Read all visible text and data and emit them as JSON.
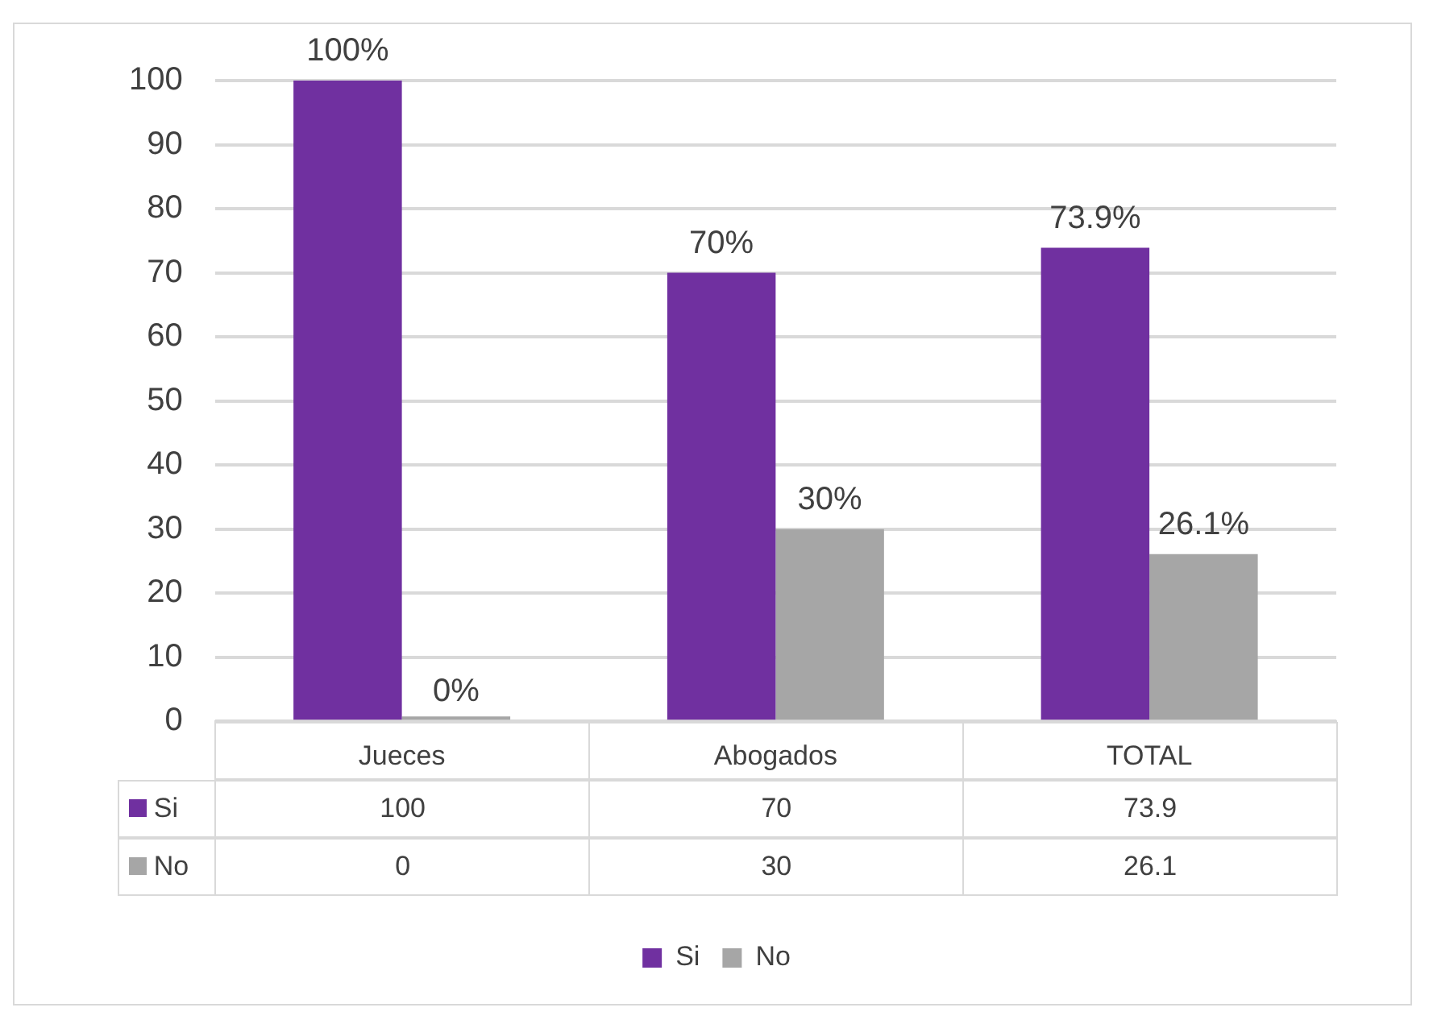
{
  "chart_data": {
    "type": "bar",
    "categories": [
      "Jueces",
      "Abogados",
      "TOTAL"
    ],
    "series": [
      {
        "name": "Si",
        "color": "#7030a0",
        "values": [
          100,
          70,
          73.9
        ]
      },
      {
        "name": "No",
        "color": "#a6a6a6",
        "values": [
          0,
          30,
          26.1
        ]
      }
    ],
    "annotations": [
      {
        "text": "100%",
        "x": "Jueces",
        "y": 100
      },
      {
        "text": "70%",
        "x": "Abogados",
        "y": 70
      },
      {
        "text": "73.9%",
        "x": "TOTAL",
        "y": 73.9
      },
      {
        "text": "0%",
        "x": "Jueces",
        "y": 0
      },
      {
        "text": "30%",
        "x": "Abogados",
        "y": 30
      },
      {
        "text": "26.1%",
        "x": "TOTAL",
        "y": 26.1
      }
    ],
    "ylim": [
      0,
      100
    ],
    "yticks": [
      0,
      10,
      20,
      30,
      40,
      50,
      60,
      70,
      80,
      90,
      100
    ],
    "grid": "y",
    "legend": "bottom",
    "data_labels": true
  }
}
